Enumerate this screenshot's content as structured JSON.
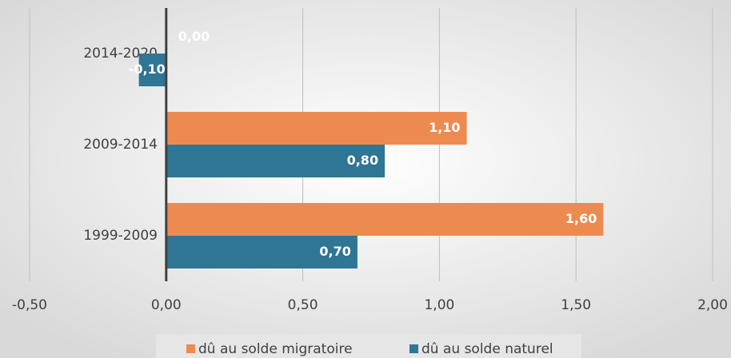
{
  "chart_data": {
    "type": "bar",
    "orientation": "horizontal",
    "categories": [
      "1999-2009",
      "2009-2014",
      "2014-2020"
    ],
    "series": [
      {
        "name": "dû au solde migratoire",
        "color": "#ED8A50",
        "values": [
          1.6,
          1.1,
          0.0
        ],
        "value_labels": [
          "1,60",
          "1,10",
          "0,00"
        ]
      },
      {
        "name": "dû au solde naturel",
        "color": "#2F7594",
        "values": [
          0.7,
          0.8,
          -0.1
        ],
        "value_labels": [
          "0,70",
          "0,80",
          "-0,10"
        ]
      }
    ],
    "xlim": [
      -0.5,
      2.0
    ],
    "xticks": [
      {
        "value": -0.5,
        "label": "-0,50"
      },
      {
        "value": 0.0,
        "label": "0,00"
      },
      {
        "value": 0.5,
        "label": "0,50"
      },
      {
        "value": 1.0,
        "label": "1,00"
      },
      {
        "value": 1.5,
        "label": "1,50"
      },
      {
        "value": 2.0,
        "label": "2,00"
      }
    ],
    "grid": true,
    "legend": "bottom"
  }
}
